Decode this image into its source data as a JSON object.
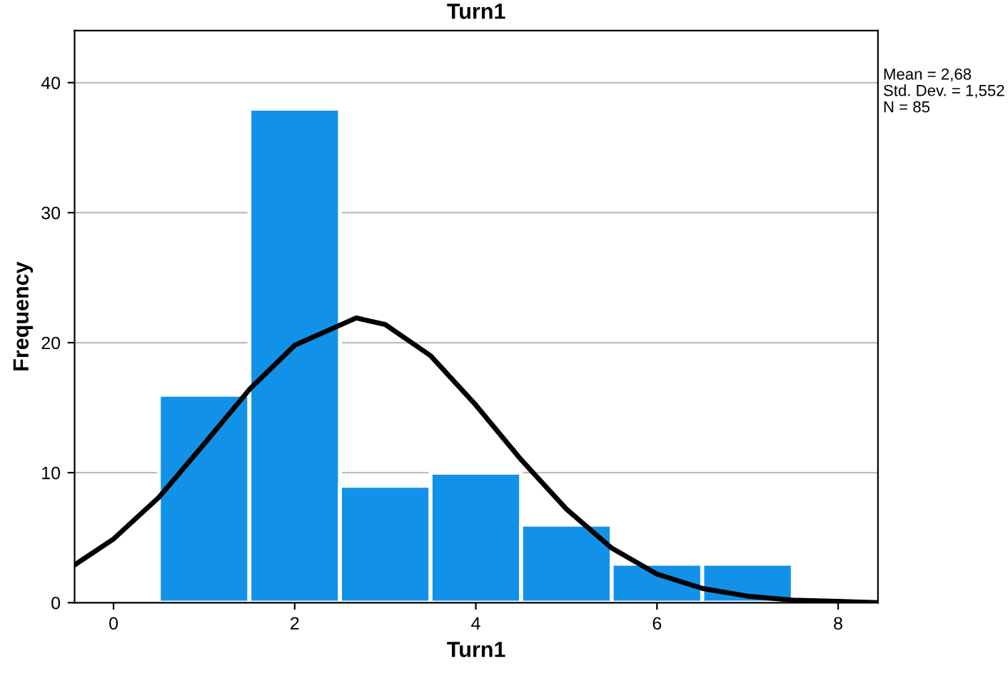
{
  "chart_data": {
    "type": "histogram",
    "title": "Turn1",
    "xlabel": "Turn1",
    "ylabel": "Frequency",
    "bins": [
      0.5,
      1.5,
      2.5,
      3.5,
      4.5,
      5.5,
      6.5,
      7.5
    ],
    "values": [
      16,
      38,
      9,
      10,
      6,
      3,
      3
    ],
    "color": "#1192e8",
    "series": [
      {
        "type": "line",
        "color": "#000000",
        "x": [
          -0.43,
          0,
          0.5,
          1,
          1.5,
          2,
          2.68,
          3,
          3.5,
          4,
          4.5,
          5,
          5.5,
          6,
          6.5,
          7,
          7.5,
          8,
          8.44
        ],
        "values": [
          2.9,
          4.9,
          8.1,
          12.2,
          16.4,
          19.8,
          21.9,
          21.4,
          19.0,
          15.2,
          11.0,
          7.2,
          4.2,
          2.2,
          1.1,
          0.5,
          0.2,
          0.1,
          0
        ]
      }
    ],
    "xlim": [
      -0.43,
      8.44
    ],
    "ylim": [
      0,
      44
    ],
    "xticks": [
      0,
      2,
      4,
      6,
      8
    ],
    "yticks": [
      0,
      10,
      20,
      30,
      40
    ],
    "grid": "y",
    "annotations": [
      "Mean = 2,68",
      "Std. Dev. = 1,552",
      "N = 85"
    ]
  }
}
